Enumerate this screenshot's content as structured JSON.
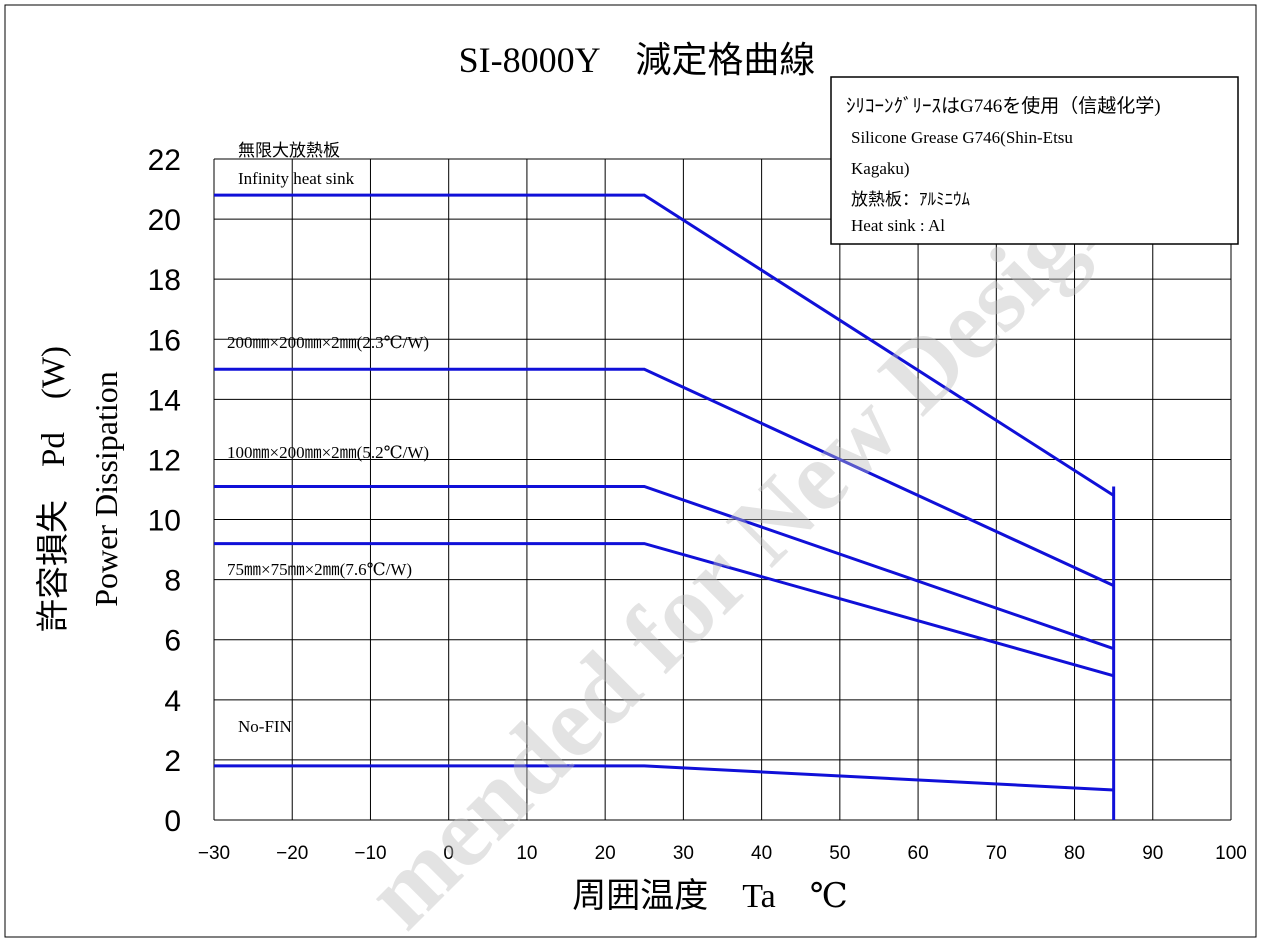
{
  "chart_data": {
    "type": "line",
    "title": "SI-8000Y　減定格曲線",
    "xlabel": "周囲温度　Ta　℃",
    "ylabel_line1": "許容損失　Pd　(W)",
    "ylabel_line2": "Power Dissipation",
    "xlim": [
      -30,
      100
    ],
    "ylim": [
      0,
      22
    ],
    "x_ticks": [
      -30,
      -20,
      -10,
      0,
      10,
      20,
      30,
      40,
      50,
      60,
      70,
      80,
      90,
      100
    ],
    "y_ticks": [
      0,
      2,
      4,
      6,
      8,
      10,
      12,
      14,
      16,
      18,
      20,
      22
    ],
    "grid": true,
    "line_color": "#1010d8",
    "series": [
      {
        "label_lines": [
          "無限大放熱板",
          "Infinity heat sink"
        ],
        "points": [
          [
            -30,
            20.8
          ],
          [
            25,
            20.8
          ],
          [
            85,
            10.8
          ]
        ]
      },
      {
        "label_lines": [
          "200㎜×200㎜×2㎜(2.3℃/W)"
        ],
        "points": [
          [
            -30,
            15.0
          ],
          [
            25,
            15.0
          ],
          [
            85,
            7.8
          ]
        ]
      },
      {
        "label_lines": [
          "100㎜×200㎜×2㎜(5.2℃/W)"
        ],
        "points": [
          [
            -30,
            11.1
          ],
          [
            25,
            11.1
          ],
          [
            85,
            5.7
          ]
        ]
      },
      {
        "label_lines": [
          "75㎜×75㎜×2㎜(7.6℃/W)"
        ],
        "points": [
          [
            -30,
            9.2
          ],
          [
            25,
            9.2
          ],
          [
            85,
            4.8
          ]
        ]
      },
      {
        "label_lines": [
          "No-FIN"
        ],
        "points": [
          [
            -30,
            1.8
          ],
          [
            25,
            1.8
          ],
          [
            85,
            1.0
          ]
        ]
      }
    ],
    "limit_line": {
      "x": 85,
      "y_range": [
        0,
        11.1
      ]
    },
    "annotation_box": {
      "lines": [
        "ｼﾘｺｰﾝｸﾞﾘｰｽはG746を使用（信越化学)",
        "Silicone Grease G746(Shin-Etsu",
        "Kagaku)",
        "放熱板：ｱﾙﾐﾆｳﾑ",
        "Heat sink : Al"
      ],
      "position": "top-right"
    },
    "watermark": "mended for New Designs"
  }
}
